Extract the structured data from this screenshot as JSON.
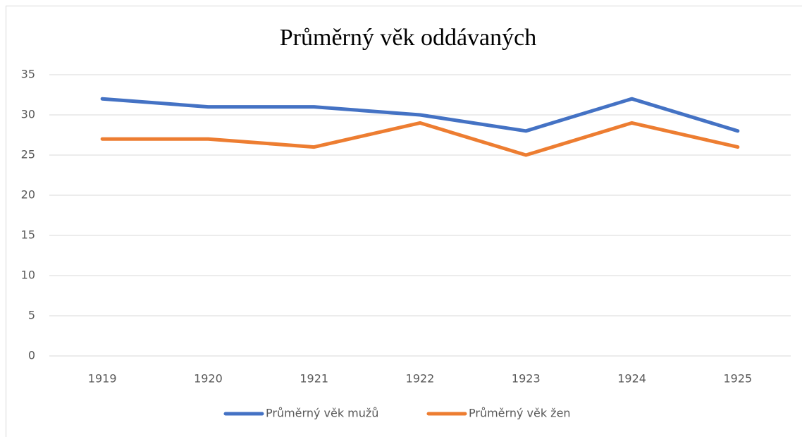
{
  "chart_data": {
    "type": "line",
    "title": "Průměrný věk oddávaných",
    "categories": [
      "1919",
      "1920",
      "1921",
      "1922",
      "1923",
      "1924",
      "1925"
    ],
    "series": [
      {
        "name": "Průměrný věk mužů",
        "color": "#4472c4",
        "values": [
          32,
          31,
          31,
          30,
          28,
          32,
          28
        ]
      },
      {
        "name": "Průměrný věk žen",
        "color": "#ed7d31",
        "values": [
          27,
          27,
          26,
          29,
          25,
          29,
          26
        ]
      }
    ],
    "ylim": [
      0,
      35
    ],
    "yticks": [
      0,
      5,
      10,
      15,
      20,
      25,
      30,
      35
    ],
    "grid": true,
    "legend": "bottom"
  }
}
